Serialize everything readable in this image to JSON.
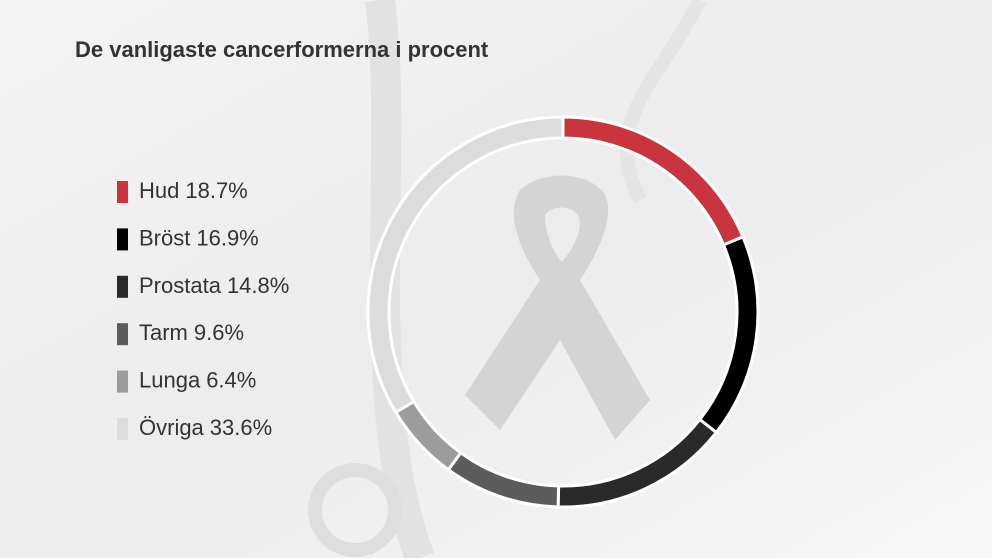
{
  "chart_data": {
    "type": "donut",
    "title": "De vanligaste cancerformerna i procent",
    "categories": [
      "Hud",
      "Bröst",
      "Prostata",
      "Tarm",
      "Lunga",
      "Övriga"
    ],
    "values": [
      18.7,
      16.9,
      14.8,
      9.6,
      6.4,
      33.6
    ],
    "value_labels": [
      "18.7%",
      "16.9%",
      "14.8%",
      "9.6%",
      "6.4%",
      "33.6%"
    ],
    "colors": [
      "#c9343f",
      "#000000",
      "#2a2a2a",
      "#5c5c5c",
      "#9c9c9c",
      "#dcdcdc"
    ]
  }
}
